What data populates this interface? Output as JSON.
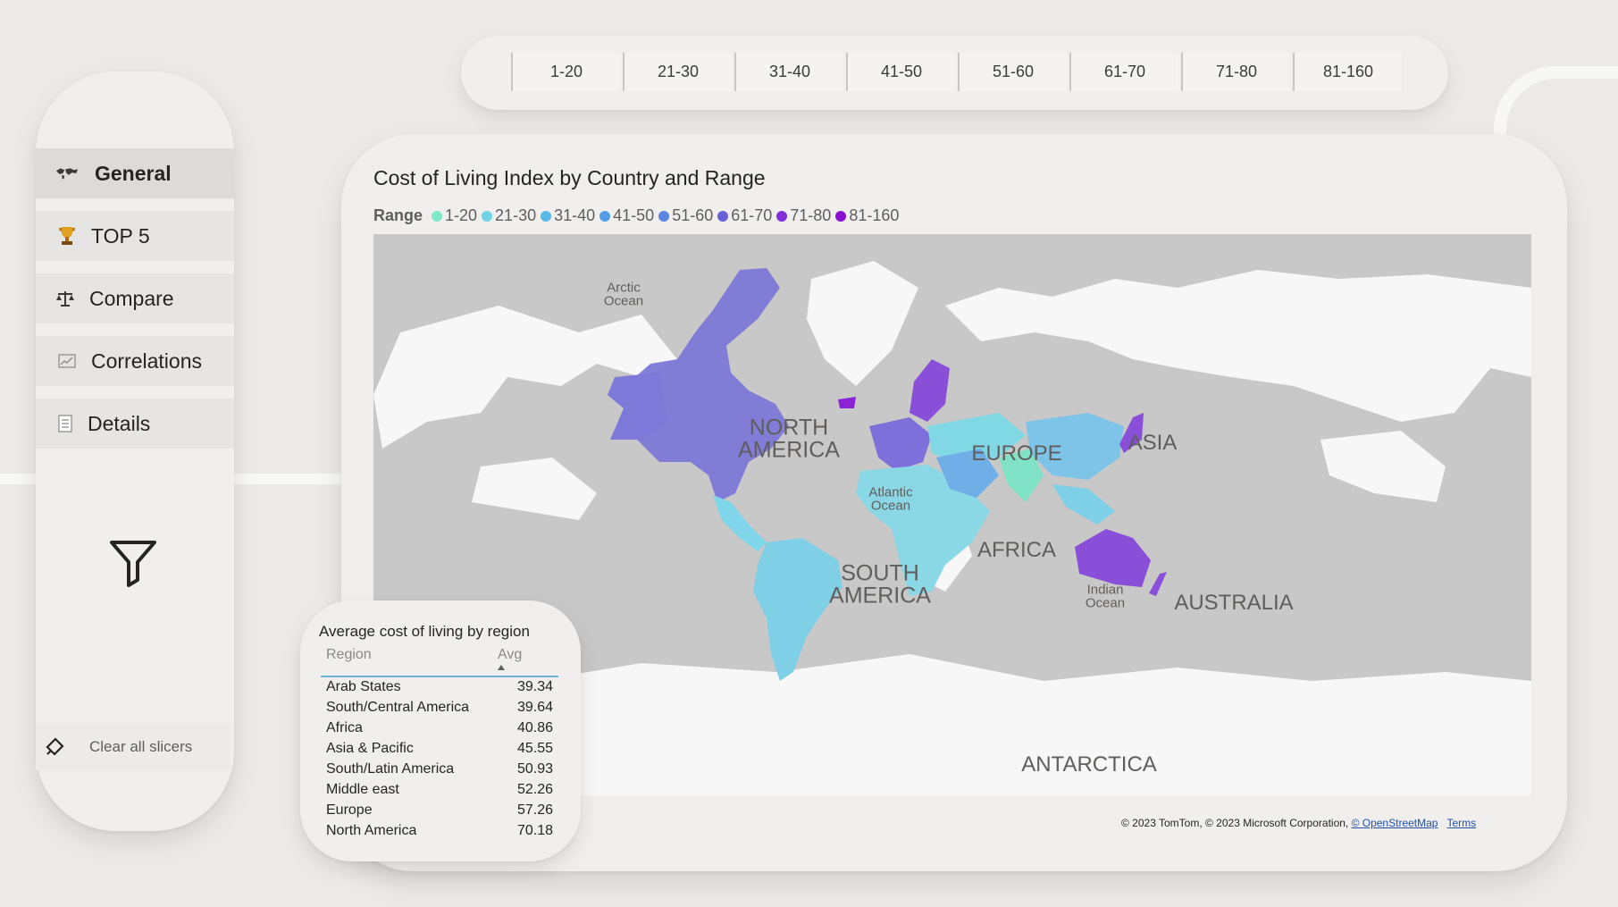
{
  "range_slicer": {
    "options": [
      "1-20",
      "21-30",
      "31-40",
      "41-50",
      "51-60",
      "61-70",
      "71-80",
      "81-160"
    ]
  },
  "nav": {
    "items": [
      {
        "label": "General",
        "icon": "world-map-icon",
        "active": true
      },
      {
        "label": "TOP 5",
        "icon": "trophy-icon",
        "active": false
      },
      {
        "label": "Compare",
        "icon": "scales-icon",
        "active": false
      },
      {
        "label": "Correlations",
        "icon": "line-chart-icon",
        "active": false
      },
      {
        "label": "Details",
        "icon": "document-icon",
        "active": false
      }
    ],
    "filter_icon": "funnel-icon",
    "clear_label": "Clear all slicers",
    "clear_icon": "eraser-icon"
  },
  "map": {
    "title": "Cost of Living Index by Country and Range",
    "legend_title": "Range",
    "legend": [
      {
        "label": "1-20",
        "color": "#7fe8c8"
      },
      {
        "label": "21-30",
        "color": "#6fd3e6"
      },
      {
        "label": "31-40",
        "color": "#5ab8e6"
      },
      {
        "label": "41-50",
        "color": "#529ee6"
      },
      {
        "label": "51-60",
        "color": "#5b86e3"
      },
      {
        "label": "61-70",
        "color": "#6a5fd6"
      },
      {
        "label": "71-80",
        "color": "#8130d9"
      },
      {
        "label": "81-160",
        "color": "#8a0fcf"
      }
    ],
    "labels": {
      "arctic": "Arctic\nOcean",
      "north_america": "NORTH\nAMERICA",
      "europe": "EUROPE",
      "asia": "ASIA",
      "atlantic": "Atlantic\nOcean",
      "africa": "AFRICA",
      "south_america": "SOUTH\nAMERICA",
      "indian": "Indian\nOcean",
      "australia": "AUSTRALIA",
      "antarctica": "ANTARCTICA"
    },
    "attribution_text": "© 2023 TomTom, © 2023 Microsoft Corporation, ",
    "attribution_link": "© OpenStreetMap",
    "terms_link": "Terms"
  },
  "region_table": {
    "title": "Average cost of living by region",
    "col_region": "Region",
    "col_avg": "Avg",
    "rows": [
      {
        "region": "Arab States",
        "avg": "39.34"
      },
      {
        "region": "South/Central America",
        "avg": "39.64"
      },
      {
        "region": "Africa",
        "avg": "40.86"
      },
      {
        "region": "Asia & Pacific",
        "avg": "45.55"
      },
      {
        "region": "South/Latin America",
        "avg": "50.93"
      },
      {
        "region": "Middle east",
        "avg": "52.26"
      },
      {
        "region": "Europe",
        "avg": "57.26"
      },
      {
        "region": "North America",
        "avg": "70.18"
      }
    ]
  }
}
